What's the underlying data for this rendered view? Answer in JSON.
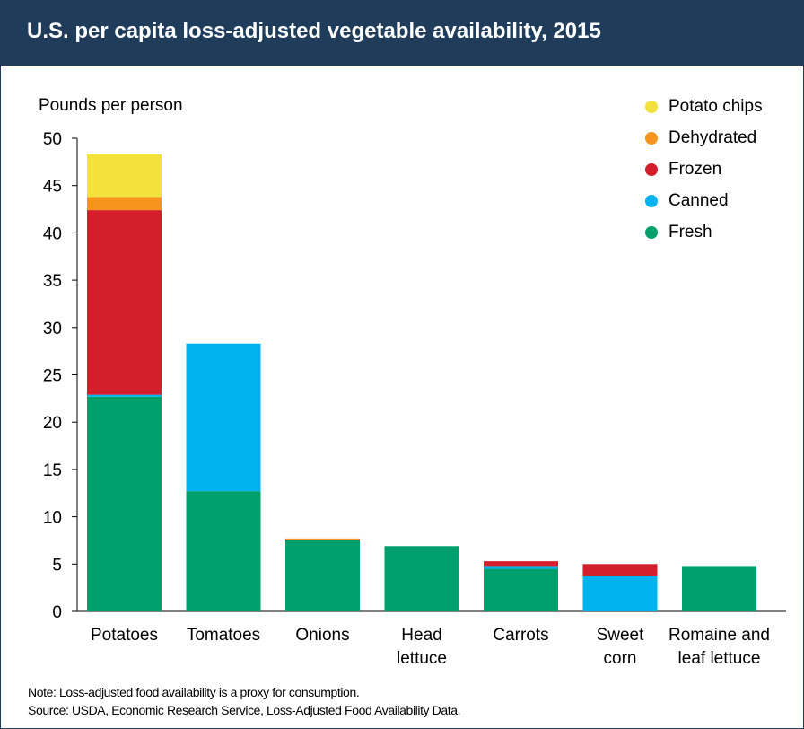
{
  "header": {
    "title": "U.S. per capita loss-adjusted vegetable availability, 2015"
  },
  "colors": {
    "header_bg": "#1f3c5a",
    "Fresh": "#00a06d",
    "Canned": "#00b3ee",
    "Frozen": "#d21f2b",
    "Dehydrated": "#f7941d",
    "Potato chips": "#f3e23b"
  },
  "chart_data": {
    "type": "bar",
    "stacked": true,
    "title": "U.S. per capita loss-adjusted vegetable availability, 2015",
    "ylabel": "Pounds per person",
    "xlabel": "",
    "ylim": [
      0,
      50
    ],
    "yticks": [
      0,
      5,
      10,
      15,
      20,
      25,
      30,
      35,
      40,
      45,
      50
    ],
    "grid": false,
    "legend_position": "top-right",
    "categories": [
      [
        "Potatoes"
      ],
      [
        "Tomatoes"
      ],
      [
        "Onions"
      ],
      [
        "Head",
        "lettuce"
      ],
      [
        "Carrots"
      ],
      [
        "Sweet",
        "corn"
      ],
      [
        "Romaine and",
        "leaf lettuce"
      ]
    ],
    "series": [
      {
        "name": "Fresh",
        "values": [
          22.7,
          12.7,
          7.5,
          6.9,
          4.5,
          0.0,
          4.8
        ]
      },
      {
        "name": "Canned",
        "values": [
          0.2,
          15.6,
          0.0,
          0.0,
          0.3,
          3.7,
          0.0
        ]
      },
      {
        "name": "Frozen",
        "values": [
          19.5,
          0.0,
          0.1,
          0.0,
          0.5,
          1.3,
          0.0
        ]
      },
      {
        "name": "Dehydrated",
        "values": [
          1.4,
          0.0,
          0.1,
          0.0,
          0.0,
          0.0,
          0.0
        ]
      },
      {
        "name": "Potato chips",
        "values": [
          4.5,
          0.0,
          0.0,
          0.0,
          0.0,
          0.0,
          0.0
        ]
      }
    ],
    "legend_order": [
      "Potato chips",
      "Dehydrated",
      "Frozen",
      "Canned",
      "Fresh"
    ]
  },
  "notes": {
    "note": "Note: Loss-adjusted food availability is a proxy for consumption.",
    "source": "Source: USDA, Economic Research Service, Loss-Adjusted Food Availability Data."
  }
}
